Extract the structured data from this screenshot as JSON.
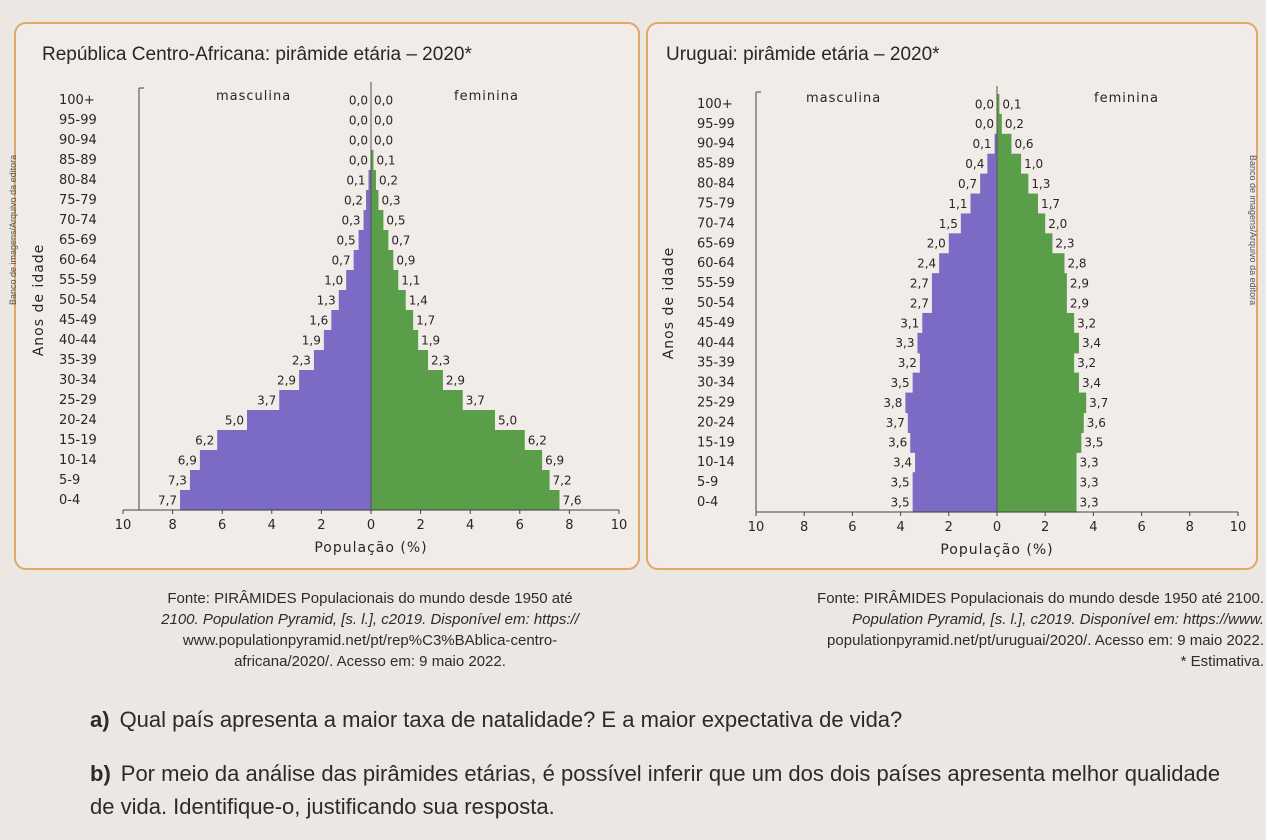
{
  "chart_data": [
    {
      "type": "population-pyramid",
      "title": "República Centro-Africana: pirâmide etária – 2020*",
      "xlabel": "População (%)",
      "ylabel": "Anos de idade",
      "left_label": "masculina",
      "right_label": "feminina",
      "xticks": [
        "10",
        "8",
        "6",
        "4",
        "2",
        "0",
        "2",
        "4",
        "6",
        "8",
        "10"
      ],
      "xlim": [
        -10,
        10
      ],
      "age_groups": [
        "100+",
        "95-99",
        "90-94",
        "85-89",
        "80-84",
        "75-79",
        "70-74",
        "65-69",
        "60-64",
        "55-59",
        "50-54",
        "45-49",
        "40-44",
        "35-39",
        "30-34",
        "25-29",
        "20-24",
        "15-19",
        "10-14",
        "5-9",
        "0-4"
      ],
      "male": [
        0.0,
        0.0,
        0.0,
        0.0,
        0.1,
        0.2,
        0.3,
        0.5,
        0.7,
        1.0,
        1.3,
        1.6,
        1.9,
        2.3,
        2.9,
        3.7,
        5.0,
        6.2,
        6.9,
        7.3,
        7.7
      ],
      "female": [
        0.0,
        0.0,
        0.0,
        0.1,
        0.2,
        0.3,
        0.5,
        0.7,
        0.9,
        1.1,
        1.4,
        1.7,
        1.9,
        2.3,
        2.9,
        3.7,
        5.0,
        6.2,
        6.9,
        7.2,
        7.6
      ],
      "male_labels": [
        "0,0",
        "0,0",
        "0,0",
        "0,0",
        "0,1",
        "0,2",
        "0,3",
        "0,5",
        "0,7",
        "1,0",
        "1,3",
        "1,6",
        "1,9",
        "2,3",
        "2,9",
        "3,7",
        "5,0",
        "6,2",
        "6,9",
        "7,3",
        "7,7"
      ],
      "female_labels": [
        "0,0",
        "0,0",
        "0,0",
        "0,1",
        "0,2",
        "0,3",
        "0,5",
        "0,7",
        "0,9",
        "1,1",
        "1,4",
        "1,7",
        "1,9",
        "2,3",
        "2,9",
        "3,7",
        "5,0",
        "6,2",
        "6,9",
        "7,2",
        "7,6"
      ],
      "colors": {
        "male": "#7b6bc4",
        "female": "#5a9e4a"
      }
    },
    {
      "type": "population-pyramid",
      "title": "Uruguai: pirâmide etária – 2020*",
      "xlabel": "População (%)",
      "ylabel": "Anos de idade",
      "left_label": "masculina",
      "right_label": "feminina",
      "xticks": [
        "10",
        "8",
        "6",
        "4",
        "2",
        "0",
        "2",
        "4",
        "6",
        "8",
        "10"
      ],
      "xlim": [
        -10,
        10
      ],
      "age_groups": [
        "100+",
        "95-99",
        "90-94",
        "85-89",
        "80-84",
        "75-79",
        "70-74",
        "65-69",
        "60-64",
        "55-59",
        "50-54",
        "45-49",
        "40-44",
        "35-39",
        "30-34",
        "25-29",
        "20-24",
        "15-19",
        "10-14",
        "5-9",
        "0-4"
      ],
      "male": [
        0.0,
        0.0,
        0.1,
        0.4,
        0.7,
        1.1,
        1.5,
        2.0,
        2.4,
        2.7,
        2.7,
        3.1,
        3.3,
        3.2,
        3.5,
        3.8,
        3.7,
        3.6,
        3.4,
        3.5,
        3.5
      ],
      "female": [
        0.1,
        0.2,
        0.6,
        1.0,
        1.3,
        1.7,
        2.0,
        2.3,
        2.8,
        2.9,
        2.9,
        3.2,
        3.4,
        3.2,
        3.4,
        3.7,
        3.6,
        3.5,
        3.3,
        3.3,
        3.3
      ],
      "male_labels": [
        "0,0",
        "0,0",
        "0,1",
        "0,4",
        "0,7",
        "1,1",
        "1,5",
        "2,0",
        "2,4",
        "2,7",
        "2,7",
        "3,1",
        "3,3",
        "3,2",
        "3,5",
        "3,8",
        "3,7",
        "3,6",
        "3,4",
        "3,5",
        "3,5"
      ],
      "female_labels": [
        "0,1",
        "0,2",
        "0,6",
        "1,0",
        "1,3",
        "1,7",
        "2,0",
        "2,3",
        "2,8",
        "2,9",
        "2,9",
        "3,2",
        "3,4",
        "3,2",
        "3,4",
        "3,7",
        "3,6",
        "3,5",
        "3,3",
        "3,3",
        "3,3"
      ],
      "colors": {
        "male": "#7b6bc4",
        "female": "#5a9e4a"
      }
    }
  ],
  "credits": {
    "left": "Banco de imagens/Arquivo da editora",
    "right": "Banco de imagens/Arquivo da editora"
  },
  "sources": {
    "caf": {
      "line1": "Fonte: PIRÂMIDES Populacionais do mundo desde 1950 até",
      "line2": "2100. Population Pyramid, [s. l.], c2019. Disponível em: https://",
      "line3": "www.populationpyramid.net/pt/rep%C3%BAblica-centro-",
      "line4": "africana/2020/. Acesso em: 9 maio 2022."
    },
    "ury": {
      "line1": "Fonte: PIRÂMIDES Populacionais do mundo desde 1950 até 2100.",
      "line2": "Population Pyramid, [s. l.], c2019. Disponível em: https://www.",
      "line3": "populationpyramid.net/pt/uruguai/2020/. Acesso em: 9 maio 2022.",
      "line4": "* Estimativa."
    }
  },
  "questions": {
    "a": {
      "letter": "a)",
      "text": "Qual país apresenta a maior taxa de natalidade? E a maior expectativa de vida?"
    },
    "b": {
      "letter": "b)",
      "text": "Por meio da análise das pirâmides etárias, é possível inferir que um dos dois países apre­senta melhor qualidade de vida. Identifique-o, justificando sua resposta."
    }
  }
}
